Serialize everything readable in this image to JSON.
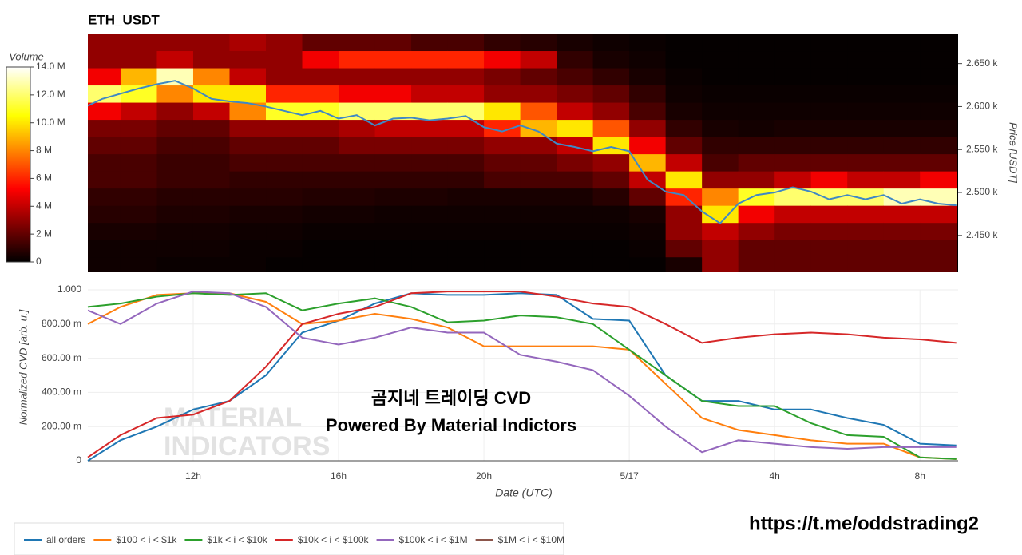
{
  "chart_data": [
    {
      "type": "heatmap",
      "title": "ETH_USDT",
      "colorbar_title": "Volume",
      "y_label": "Price [USDT]",
      "colorscale": "hot",
      "x_bins": [
        9.1,
        10,
        11,
        12,
        13,
        14,
        15,
        16,
        17,
        18,
        19,
        20,
        21,
        22,
        23,
        24,
        25,
        26,
        27,
        28,
        29,
        30,
        31,
        32,
        33
      ],
      "y_bins": [
        2405,
        2425,
        2445,
        2465,
        2485,
        2505,
        2525,
        2545,
        2565,
        2585,
        2605,
        2625,
        2645,
        2665,
        2685
      ],
      "z": [
        [
          0.3,
          0.3,
          0.5,
          0.8,
          1,
          1.5,
          1.5,
          2,
          2.5,
          5,
          12,
          5,
          3,
          3
        ],
        [
          0.3,
          0.3,
          0.5,
          0.8,
          1,
          1.5,
          1.5,
          2,
          2.5,
          4,
          11,
          9,
          3,
          3
        ],
        [
          0.2,
          0.3,
          0.4,
          0.6,
          0.8,
          1.2,
          1.2,
          1.5,
          2,
          3,
          8,
          13,
          4,
          3
        ],
        [
          0.2,
          0.3,
          0.4,
          0.6,
          0.8,
          1.2,
          1.2,
          1.5,
          2,
          4,
          10,
          8,
          3,
          3
        ],
        [
          0.2,
          0.2,
          0.3,
          0.5,
          0.8,
          1,
          1.5,
          2,
          3,
          8,
          10,
          4,
          3,
          3.5
        ],
        [
          0.1,
          0.2,
          0.3,
          0.5,
          0.8,
          1,
          1.5,
          2,
          3,
          11,
          6,
          3,
          3,
          3
        ],
        [
          0.1,
          0.1,
          0.2,
          0.4,
          0.7,
          1,
          1.5,
          2,
          3,
          11,
          6,
          3,
          5,
          2
        ],
        [
          0.1,
          0.1,
          0.2,
          0.4,
          0.7,
          1,
          1.5,
          2.5,
          3.5,
          12,
          5,
          3,
          6,
          2
        ],
        [
          0.1,
          0.1,
          0.2,
          0.3,
          0.6,
          1,
          1.5,
          2.5,
          4,
          12,
          5,
          3,
          6,
          2
        ],
        [
          0.1,
          0.1,
          0.2,
          0.3,
          0.6,
          1,
          1.5,
          2.5,
          4,
          12,
          4,
          3,
          6,
          1.5
        ],
        [
          0.1,
          0.1,
          0.2,
          0.3,
          0.5,
          1,
          1.5,
          2.5,
          4,
          12,
          4,
          3,
          6,
          1.5
        ],
        [
          0.1,
          0.1,
          0.2,
          0.3,
          0.5,
          1.5,
          2,
          3,
          6,
          10,
          3,
          2.5,
          5,
          1
        ],
        [
          0.1,
          0.1,
          0.2,
          0.3,
          0.5,
          1.5,
          2,
          3,
          9,
          7,
          3,
          2,
          4,
          0.8
        ],
        [
          0.1,
          0.1,
          0.2,
          0.3,
          0.5,
          1.5,
          2.5,
          4,
          10,
          4,
          2.5,
          1.5,
          1,
          0.5
        ],
        [
          0.1,
          0.1,
          0.2,
          0.3,
          0.8,
          2,
          3,
          10,
          7,
          3,
          2,
          1,
          0.5,
          0.3
        ],
        [
          0.1,
          0.2,
          0.3,
          0.5,
          2,
          4,
          9,
          5,
          3,
          1.5,
          1,
          0.5,
          0.3,
          0.2
        ],
        [
          0.5,
          2,
          3,
          3,
          6,
          10,
          4,
          2,
          1,
          0.5,
          0.3,
          0.2,
          0.1,
          0.1
        ],
        [
          3,
          3,
          4,
          10,
          8,
          3,
          1.5,
          1,
          0.5,
          0.3,
          0.2,
          0.1,
          0.1,
          0.1
        ],
        [
          2,
          2,
          3,
          5,
          11,
          3,
          2,
          1,
          0.4,
          0.3,
          0.2,
          0.1,
          0.1,
          0.1
        ],
        [
          2,
          2,
          2.5,
          4,
          12,
          4,
          2,
          1,
          0.5,
          0.3,
          0.2,
          0.1,
          0.1,
          0.1
        ],
        [
          2,
          2,
          2.5,
          4,
          12,
          5,
          2,
          1,
          0.5,
          0.3,
          0.2,
          0.1,
          0.1,
          0.1
        ],
        [
          2,
          2,
          2.5,
          4,
          12,
          4,
          2,
          1,
          0.5,
          0.3,
          0.2,
          0.1,
          0.1,
          0.1
        ],
        [
          2,
          2,
          2.5,
          4,
          13,
          4,
          2,
          1,
          0.5,
          0.3,
          0.2,
          0.1,
          0.1,
          0.1
        ],
        [
          2,
          2,
          2.5,
          4,
          13,
          5,
          2,
          1,
          0.5,
          0.3,
          0.2,
          0.1,
          0.1,
          0.1
        ]
      ],
      "zlim": [
        0,
        14
      ],
      "zticks": [
        0,
        {
          "value": 2,
          "label": "2 M"
        },
        {
          "value": 4,
          "label": "4 M"
        },
        {
          "value": 6,
          "label": "6 M"
        },
        {
          "value": 8,
          "label": "8 M"
        },
        {
          "value": 10,
          "label": "10.0 M"
        },
        {
          "value": 12,
          "label": "12.0 M"
        },
        {
          "value": 14,
          "label": "14.0 M"
        }
      ],
      "price": {
        "color": "#3f88c5",
        "x": [
          9.1,
          9.5,
          10,
          10.5,
          11,
          11.5,
          12,
          12.5,
          13,
          13.5,
          14,
          14.5,
          15,
          15.5,
          16,
          16.5,
          17,
          17.5,
          18,
          18.5,
          19,
          19.5,
          20,
          20.5,
          21,
          21.5,
          22,
          22.5,
          23,
          23.5,
          24,
          24.5,
          25,
          25.5,
          26,
          26.5,
          27,
          27.5,
          28,
          28.5,
          29,
          29.5,
          30,
          30.5,
          31,
          31.5,
          32,
          32.5,
          33
        ],
        "values": [
          2601,
          2609,
          2615,
          2621,
          2626,
          2630,
          2621,
          2609,
          2606,
          2604,
          2600,
          2595,
          2590,
          2595,
          2586,
          2590,
          2578,
          2586,
          2587,
          2584,
          2586,
          2589,
          2576,
          2571,
          2578,
          2571,
          2557,
          2553,
          2548,
          2553,
          2548,
          2515,
          2501,
          2497,
          2478,
          2464,
          2487,
          2497,
          2500,
          2506,
          2501,
          2492,
          2497,
          2492,
          2497,
          2487,
          2492,
          2487,
          2485
        ]
      },
      "xlim": [
        9.1,
        33.05
      ],
      "ylim": [
        2408,
        2685
      ],
      "yticks": [
        {
          "value": 2450,
          "label": "2.450 k"
        },
        {
          "value": 2500,
          "label": "2.500 k"
        },
        {
          "value": 2550,
          "label": "2.550 k"
        },
        {
          "value": 2600,
          "label": "2.600 k"
        },
        {
          "value": 2650,
          "label": "2.650 k"
        }
      ]
    },
    {
      "type": "line",
      "x_label": "Date (UTC)",
      "y_label": "Normalized CVD [arb. u.]",
      "grid": true,
      "annotations": [
        "곰지네 트레이딩 CVD",
        "Powered By Material Indictors"
      ],
      "x": [
        9.1,
        10,
        11,
        12,
        13,
        14,
        15,
        16,
        17,
        18,
        19,
        20,
        21,
        22,
        23,
        24,
        25,
        26,
        27,
        28,
        29,
        30,
        31,
        32,
        33
      ],
      "series": [
        {
          "name": "all orders",
          "color": "#1f77b4",
          "values": [
            0,
            0.12,
            0.2,
            0.3,
            0.35,
            0.5,
            0.75,
            0.82,
            0.92,
            0.98,
            0.97,
            0.97,
            0.98,
            0.97,
            0.83,
            0.82,
            0.5,
            0.35,
            0.35,
            0.3,
            0.3,
            0.25,
            0.21,
            0.1,
            0.09
          ]
        },
        {
          "name": "$100 < i < $1k",
          "color": "#ff7f0e",
          "values": [
            0.8,
            0.9,
            0.97,
            0.98,
            0.98,
            0.93,
            0.8,
            0.82,
            0.86,
            0.83,
            0.78,
            0.67,
            0.67,
            0.67,
            0.67,
            0.65,
            0.45,
            0.25,
            0.18,
            0.15,
            0.12,
            0.1,
            0.1,
            0.02,
            0.01
          ]
        },
        {
          "name": "$1k < i < $10k",
          "color": "#2ca02c",
          "values": [
            0.9,
            0.92,
            0.96,
            0.98,
            0.97,
            0.98,
            0.88,
            0.92,
            0.95,
            0.9,
            0.81,
            0.82,
            0.85,
            0.84,
            0.8,
            0.65,
            0.5,
            0.35,
            0.32,
            0.32,
            0.22,
            0.15,
            0.14,
            0.02,
            0.01
          ]
        },
        {
          "name": "$10k < i < $100k",
          "color": "#d62728",
          "values": [
            0.02,
            0.15,
            0.25,
            0.27,
            0.35,
            0.55,
            0.8,
            0.86,
            0.9,
            0.98,
            0.99,
            0.99,
            0.99,
            0.96,
            0.92,
            0.9,
            0.8,
            0.69,
            0.72,
            0.74,
            0.75,
            0.74,
            0.72,
            0.71,
            0.69
          ]
        },
        {
          "name": "$100k < i < $1M",
          "color": "#9467bd",
          "values": [
            0.88,
            0.8,
            0.92,
            0.99,
            0.98,
            0.9,
            0.72,
            0.68,
            0.72,
            0.78,
            0.75,
            0.75,
            0.62,
            0.58,
            0.53,
            0.38,
            0.2,
            0.05,
            0.12,
            0.1,
            0.08,
            0.07,
            0.08,
            0.08,
            0.08
          ]
        },
        {
          "name": "$1M < i < $10M",
          "color": "#8c564b",
          "values": [
            null,
            null,
            null,
            null,
            null,
            null,
            null,
            null,
            null,
            null,
            null,
            null,
            null,
            null,
            null,
            null,
            null,
            null,
            null,
            null,
            null,
            null,
            null,
            null,
            null
          ]
        }
      ],
      "xlim": [
        9.1,
        33.05
      ],
      "xticks": [
        {
          "value": 12,
          "label": "12h"
        },
        {
          "value": 16,
          "label": "16h"
        },
        {
          "value": 20,
          "label": "20h"
        },
        {
          "value": 24,
          "label": "5/17"
        },
        {
          "value": 28,
          "label": "4h"
        },
        {
          "value": 32,
          "label": "8h"
        }
      ],
      "ylim": [
        0,
        1
      ],
      "yticks": [
        0,
        {
          "value": 0.2,
          "label": "200.00 m"
        },
        {
          "value": 0.4,
          "label": "400.00 m"
        },
        {
          "value": 0.6,
          "label": "600.00 m"
        },
        {
          "value": 0.8,
          "label": "800.00 m"
        },
        {
          "value": 1,
          "label": "1.000"
        }
      ]
    }
  ],
  "watermark": [
    "MATERIAL",
    "INDICATORS"
  ],
  "footer_link": "https://t.me/oddstrading2"
}
